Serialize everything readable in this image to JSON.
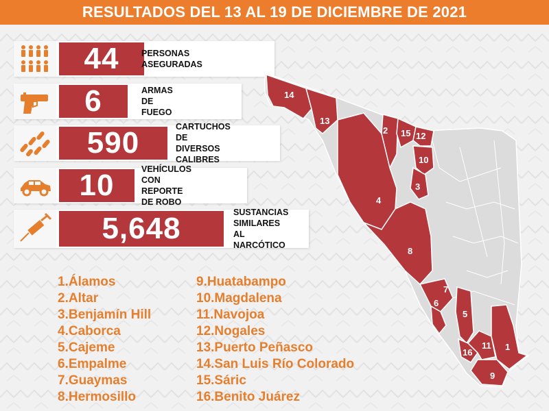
{
  "header": {
    "title": "RESULTADOS DEL 13 AL 19 DE DICIEMBRE DE 2021"
  },
  "colors": {
    "accent_orange": "#eb7d2d",
    "card_red": "#b4373c",
    "map_highlight": "#b4373c",
    "map_base": "#dcdcdc"
  },
  "stats": [
    {
      "icon": "people-icon",
      "value": "44",
      "label": "PERSONAS ASEGURADAS"
    },
    {
      "icon": "pistol-icon",
      "value": "6",
      "label": "ARMAS DE FUEGO"
    },
    {
      "icon": "bullets-icon",
      "value": "590",
      "label": "CARTUCHOS DE\nDIVERSOS CALIBRES"
    },
    {
      "icon": "car-icon",
      "value": "10",
      "label": "VEHÍCULOS CON\nREPORTE DE ROBO"
    },
    {
      "icon": "syringe-icon",
      "value": "5,648",
      "label": "SUSTANCIAS\nSIMILARES AL\nNARCÓTICO"
    }
  ],
  "legend_left": [
    "1.Álamos",
    "2.Altar",
    "3.Benjamín Hill",
    "4.Caborca",
    "5.Cajeme",
    "6.Empalme",
    "7.Guaymas",
    "8.Hermosillo"
  ],
  "legend_right": [
    "9.Huatabampo",
    "10.Magdalena",
    "11.Navojoa",
    "12.Nogales",
    "13.Puerto Peñasco",
    "14.San Luis Río Colorado",
    "15.Sáric",
    "16.Benito Juárez"
  ],
  "map_labels": [
    {
      "num": "1"
    },
    {
      "num": "2"
    },
    {
      "num": "3"
    },
    {
      "num": "4"
    },
    {
      "num": "5"
    },
    {
      "num": "6"
    },
    {
      "num": "7"
    },
    {
      "num": "8"
    },
    {
      "num": "9"
    },
    {
      "num": "10"
    },
    {
      "num": "11"
    },
    {
      "num": "12"
    },
    {
      "num": "13"
    },
    {
      "num": "14"
    },
    {
      "num": "15"
    },
    {
      "num": "16"
    }
  ]
}
